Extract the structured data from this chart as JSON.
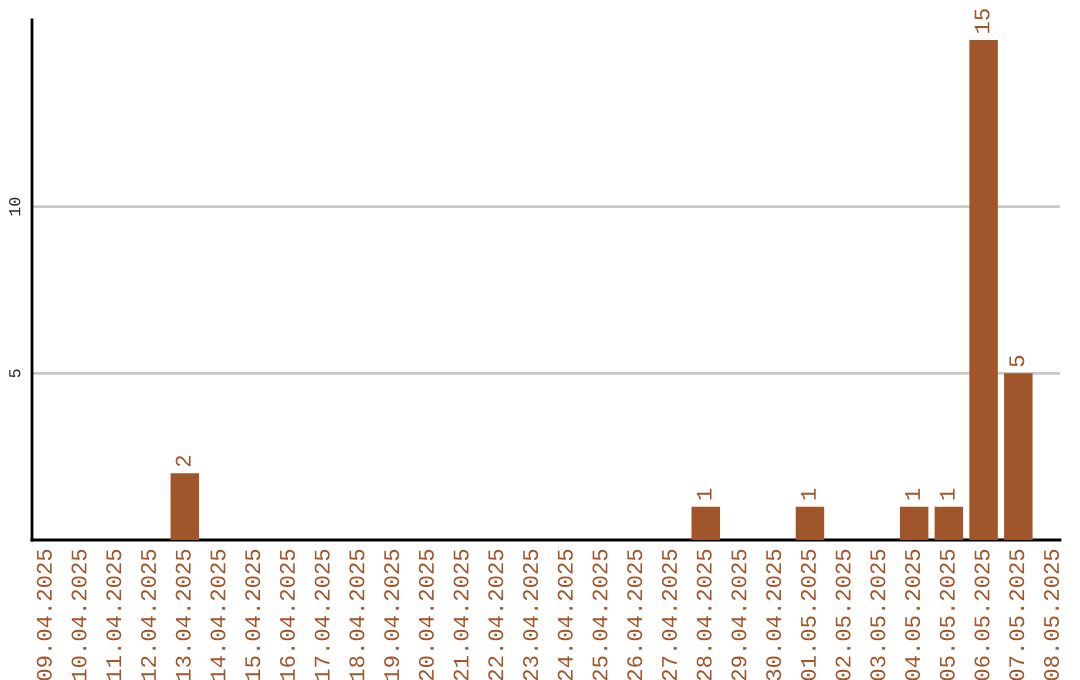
{
  "chart_data": {
    "type": "bar",
    "categories": [
      "09.04.2025",
      "10.04.2025",
      "11.04.2025",
      "12.04.2025",
      "13.04.2025",
      "14.04.2025",
      "15.04.2025",
      "16.04.2025",
      "17.04.2025",
      "18.04.2025",
      "19.04.2025",
      "20.04.2025",
      "21.04.2025",
      "22.04.2025",
      "23.04.2025",
      "24.04.2025",
      "25.04.2025",
      "26.04.2025",
      "27.04.2025",
      "28.04.2025",
      "29.04.2025",
      "30.04.2025",
      "01.05.2025",
      "02.05.2025",
      "03.05.2025",
      "04.05.2025",
      "05.05.2025",
      "06.05.2025",
      "07.05.2025",
      "08.05.2025"
    ],
    "values": [
      0,
      0,
      0,
      0,
      2,
      0,
      0,
      0,
      0,
      0,
      0,
      0,
      0,
      0,
      0,
      0,
      0,
      0,
      0,
      1,
      0,
      0,
      1,
      0,
      0,
      1,
      1,
      15,
      5,
      0
    ],
    "value_labels": [
      null,
      null,
      null,
      null,
      "2",
      null,
      null,
      null,
      null,
      null,
      null,
      null,
      null,
      null,
      null,
      null,
      null,
      null,
      null,
      "1",
      null,
      null,
      "1",
      null,
      null,
      "1",
      "1",
      "15",
      "5",
      null
    ],
    "color": "#a0562a",
    "ylim": [
      0,
      15.6
    ],
    "yticks": [
      5,
      10
    ],
    "grid": "y",
    "legend": false
  }
}
